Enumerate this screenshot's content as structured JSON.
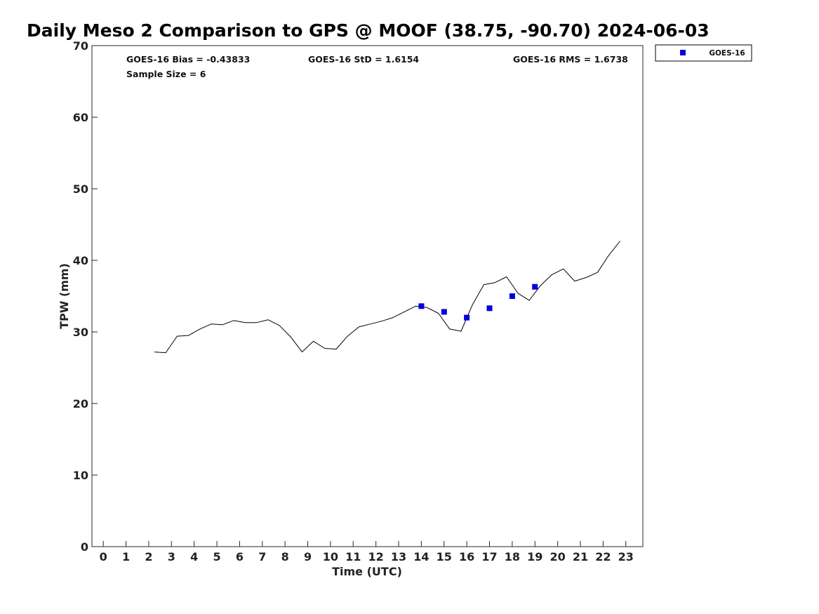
{
  "chart_data": {
    "type": "scatter",
    "title": "Daily Meso 2 Comparison to GPS @ MOOF (38.75, -90.70) 2024-06-03",
    "xlabel": "Time (UTC)",
    "ylabel": "TPW (mm)",
    "xlim": [
      -0.5,
      23.75
    ],
    "ylim": [
      0,
      70
    ],
    "xticks": [
      0,
      1,
      2,
      3,
      4,
      5,
      6,
      7,
      8,
      9,
      10,
      11,
      12,
      13,
      14,
      15,
      16,
      17,
      18,
      19,
      20,
      21,
      22,
      23
    ],
    "yticks": [
      0,
      10,
      20,
      30,
      40,
      50,
      60,
      70
    ],
    "grid": false,
    "legend_position": "top-right-outside",
    "stats": {
      "bias": "GOES-16 Bias = -0.43833",
      "std": "GOES-16 StD = 1.6154",
      "rms": "GOES-16 RMS = 1.6738",
      "sample_size": "Sample Size = 6"
    },
    "series": [
      {
        "name": "GOES-16",
        "kind": "scatter",
        "marker": "square",
        "color": "#0000dd",
        "x": [
          14.0,
          15.0,
          16.0,
          17.0,
          18.0,
          19.0
        ],
        "y": [
          33.6,
          32.8,
          32.0,
          33.3,
          35.0,
          36.3
        ]
      },
      {
        "kind": "line",
        "color": "#000000",
        "x": [
          2.25,
          2.75,
          3.25,
          3.75,
          4.25,
          4.75,
          5.25,
          5.75,
          6.25,
          6.75,
          7.25,
          7.75,
          8.25,
          8.75,
          9.25,
          9.75,
          10.25,
          10.75,
          11.25,
          11.75,
          12.25,
          12.75,
          13.25,
          13.75,
          14.25,
          14.75,
          15.25,
          15.75,
          16.25,
          16.75,
          17.25,
          17.75,
          18.25,
          18.75,
          19.25,
          19.75,
          20.25,
          20.75,
          21.25,
          21.75,
          22.25,
          22.75
        ],
        "y": [
          27.2,
          27.1,
          29.4,
          29.5,
          30.4,
          31.1,
          31.0,
          31.6,
          31.3,
          31.3,
          31.7,
          30.9,
          29.3,
          27.2,
          28.7,
          27.7,
          27.6,
          29.4,
          30.7,
          31.1,
          31.5,
          32.0,
          32.8,
          33.6,
          33.4,
          32.6,
          30.4,
          30.1,
          33.8,
          36.6,
          36.9,
          37.7,
          35.4,
          34.4,
          36.5,
          38.0,
          38.8,
          37.1,
          37.6,
          38.3,
          40.7,
          42.7
        ]
      }
    ]
  }
}
